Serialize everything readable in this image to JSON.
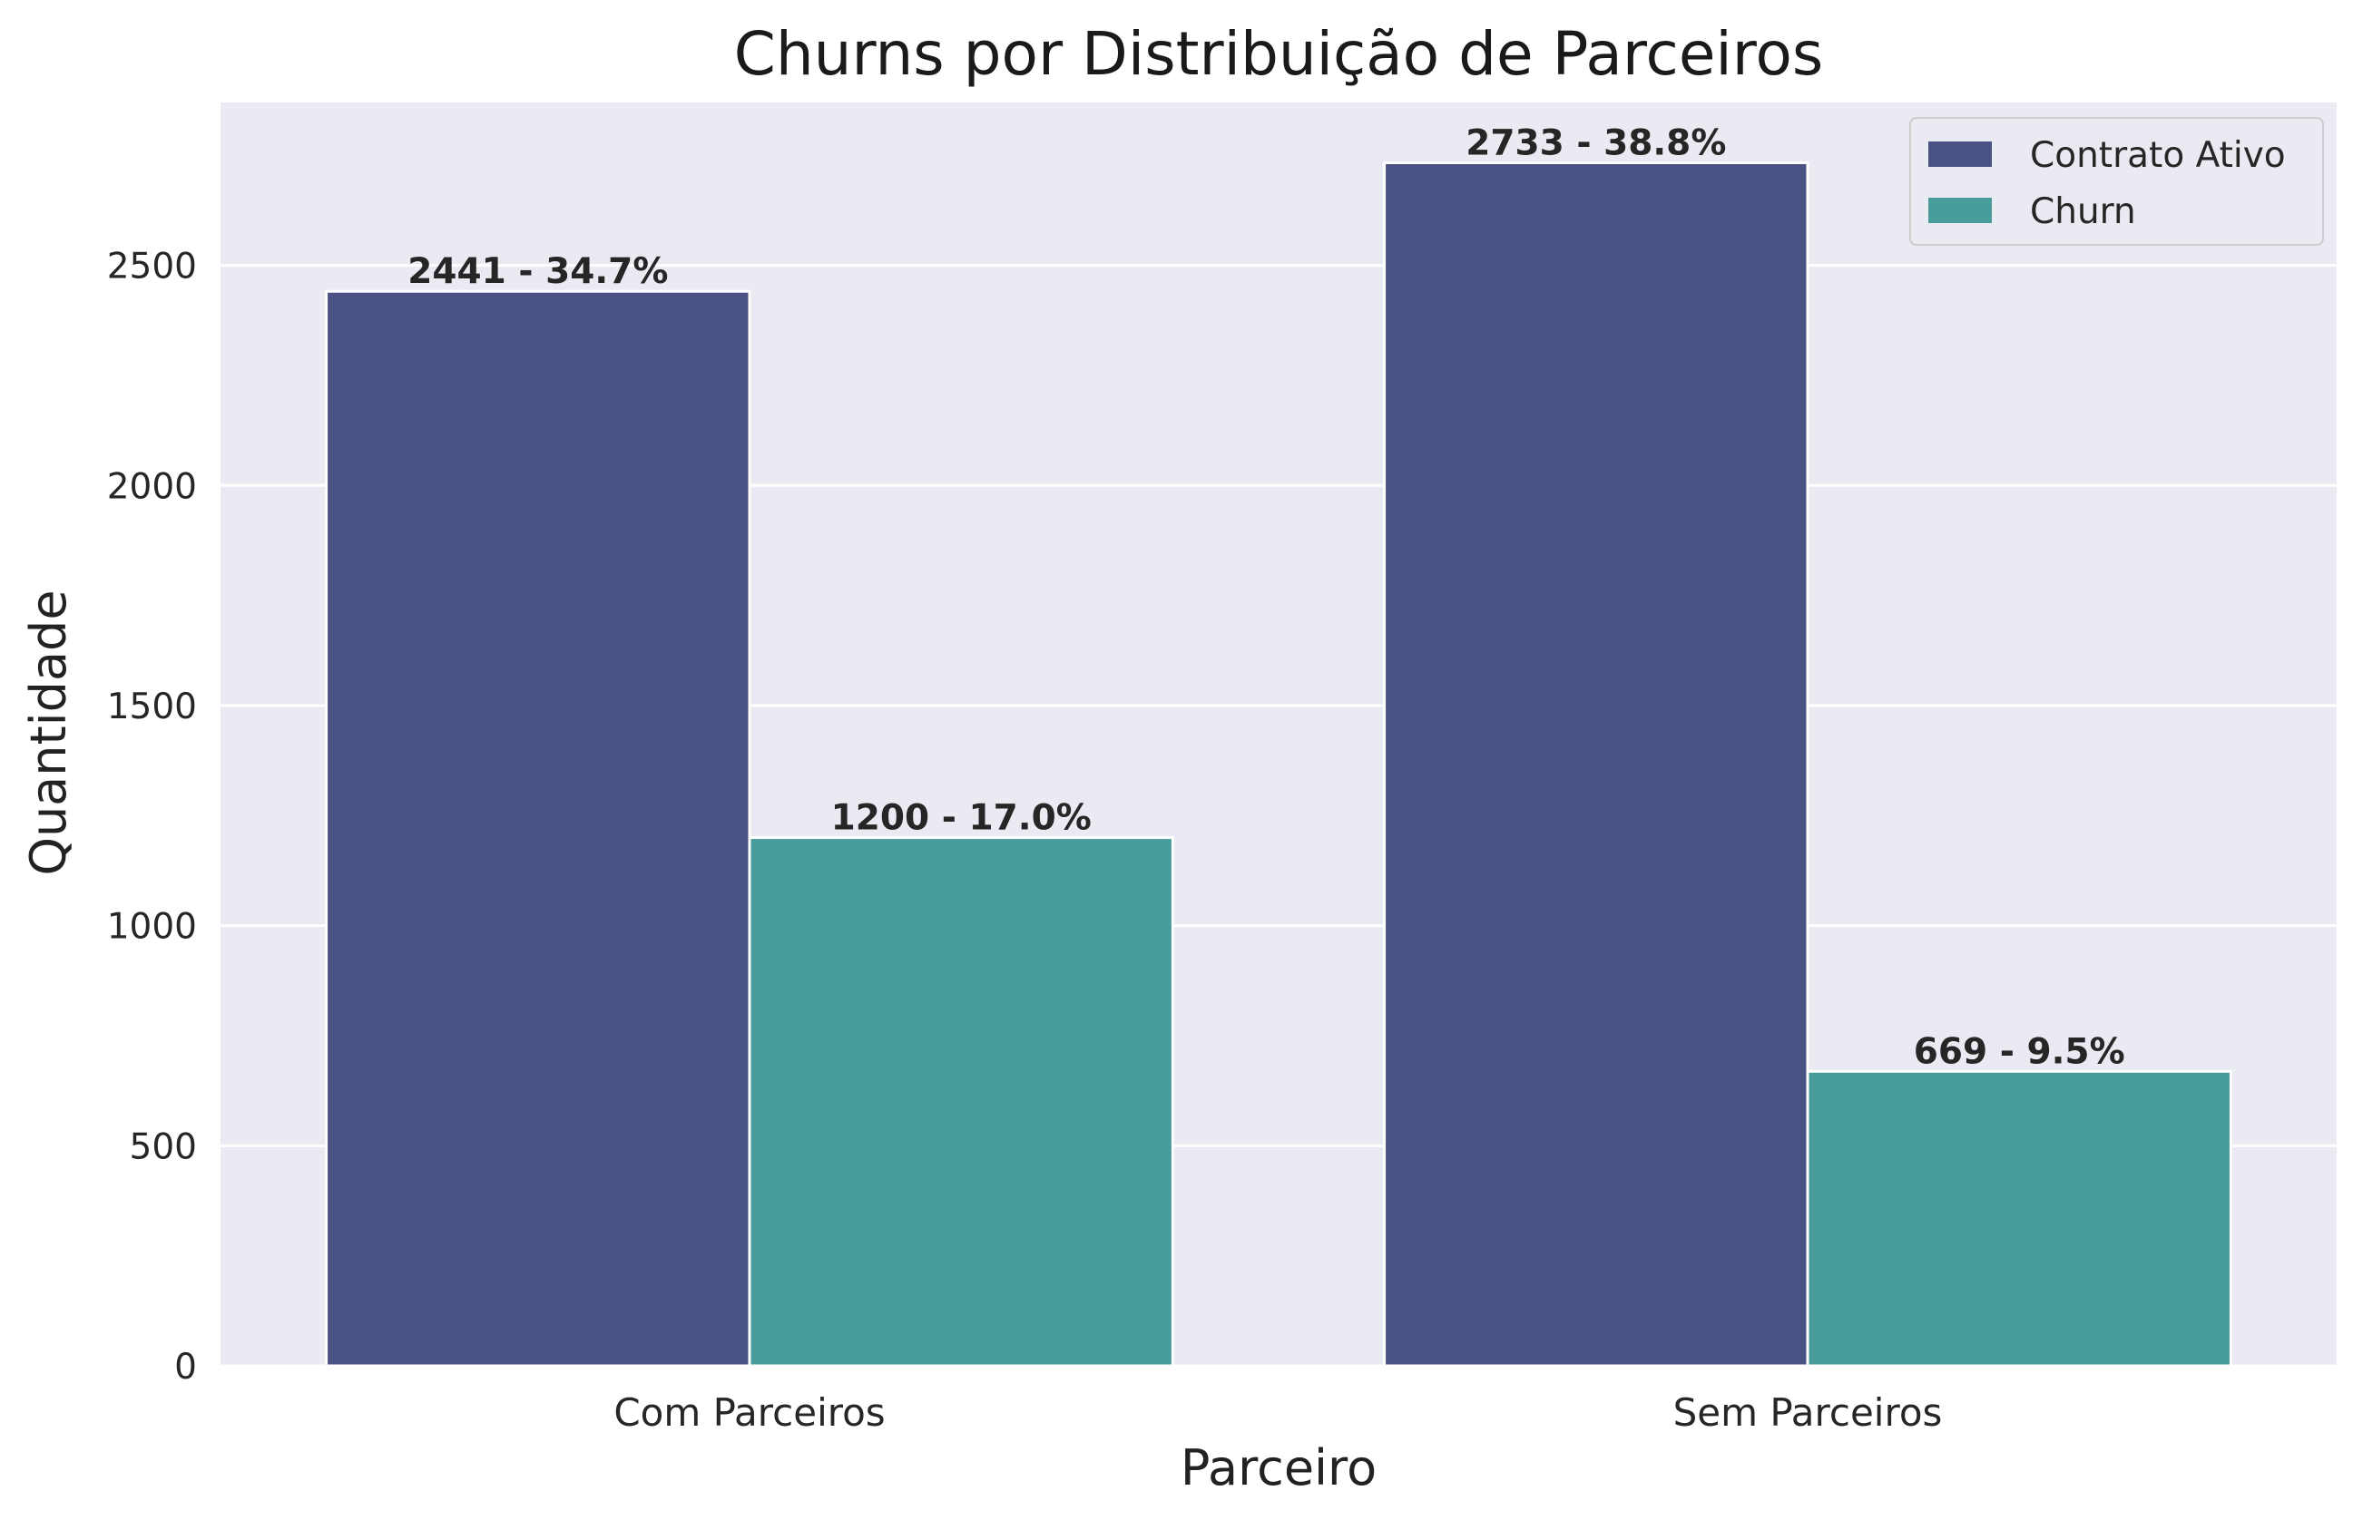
{
  "chart_data": {
    "type": "bar",
    "title": "Churns por Distribuição de Parceiros",
    "xlabel": "Parceiro",
    "ylabel": "Quantidade",
    "categories": [
      "Com Parceiros",
      "Sem Parceiros"
    ],
    "series": [
      {
        "name": "Contrato Ativo",
        "color": "#4a5183",
        "values": [
          2441,
          2733
        ],
        "labels": [
          "2441 - 34.7%",
          "2733 - 38.8%"
        ]
      },
      {
        "name": "Churn",
        "color": "#489d9c",
        "values": [
          1200,
          669
        ],
        "labels": [
          "1200 - 17.0%",
          "669 - 9.5%"
        ]
      }
    ],
    "ylim": [
      0,
      2870
    ],
    "yticks": [
      0,
      500,
      1000,
      1500,
      2000,
      2500
    ],
    "grid": true,
    "background": "#eaeaf2",
    "legend_position": "top-right"
  }
}
